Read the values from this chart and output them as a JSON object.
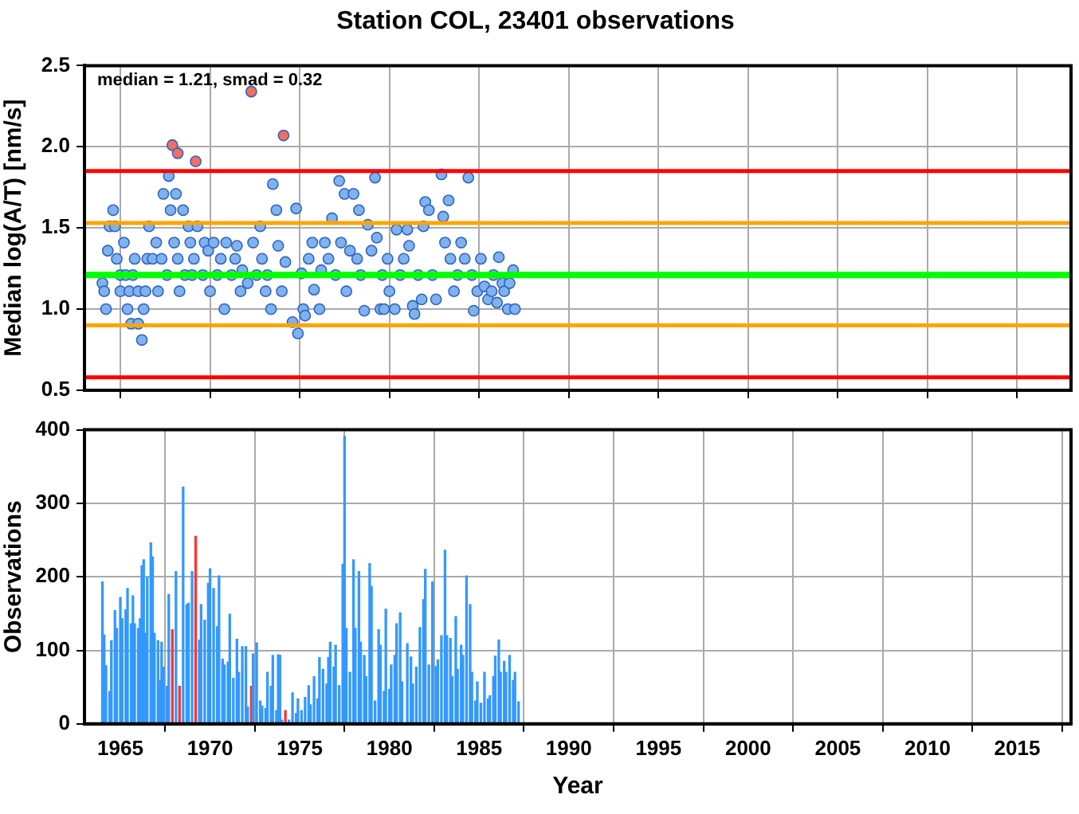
{
  "chart_data": [
    {
      "type": "scatter",
      "title": "Station COL, 23401 observations",
      "ylabel": "Median log(A/T) [nm/s]",
      "xlim": [
        1963,
        2018
      ],
      "xticks": [
        1965,
        1970,
        1975,
        1980,
        1985,
        1990,
        1995,
        2000,
        2005,
        2010,
        2015
      ],
      "ylim": [
        0.5,
        2.5
      ],
      "yticks": [
        0.5,
        {
          "value": 1,
          "label": "1.0"
        },
        1.5,
        {
          "value": 2,
          "label": "2.0"
        },
        2.5
      ],
      "tick_labels": "y",
      "grid": true,
      "marker": "circle",
      "annotations": [
        "median = 1.21, smad = 0.32"
      ],
      "ref_lines": [
        {
          "axis": "y",
          "value": 1.85,
          "color": "#ff0000"
        },
        {
          "axis": "y",
          "value": 1.53,
          "color": "#ffa500"
        },
        {
          "axis": "y",
          "value": 1.21,
          "color": "#00ff00"
        },
        {
          "axis": "y",
          "value": 0.9,
          "color": "#ffa500"
        },
        {
          "axis": "y",
          "value": 0.58,
          "color": "#ff0000"
        }
      ],
      "series": [
        {
          "color": "#7fb2f0",
          "x": [
            1964.0,
            1964.1,
            1964.2,
            1964.3,
            1964.4,
            1964.6,
            1964.7,
            1964.8,
            1965.0,
            1965.0,
            1965.2,
            1965.3,
            1965.4,
            1965.5,
            1965.6,
            1965.7,
            1965.8,
            1966.0,
            1966.0,
            1966.2,
            1966.3,
            1966.4,
            1966.5,
            1966.6,
            1966.8,
            1967.0,
            1967.1,
            1967.3,
            1967.4,
            1967.6,
            1967.7,
            1967.8,
            1968.0,
            1968.1,
            1968.2,
            1968.3,
            1968.5,
            1968.6,
            1968.8,
            1968.9,
            1969.0,
            1969.1,
            1969.3,
            1969.6,
            1969.7,
            1969.9,
            1970.0,
            1970.2,
            1970.4,
            1970.6,
            1970.8,
            1970.9,
            1971.2,
            1971.4,
            1971.5,
            1971.7,
            1971.8,
            1972.1,
            1972.4,
            1972.6,
            1972.8,
            1972.9,
            1973.1,
            1973.2,
            1973.4,
            1973.5,
            1973.7,
            1973.8,
            1974.0,
            1974.2,
            1974.6,
            1974.8,
            1974.9,
            1975.1,
            1975.2,
            1975.3,
            1975.5,
            1975.7,
            1975.8,
            1976.1,
            1976.2,
            1976.4,
            1976.6,
            1976.8,
            1977.0,
            1977.2,
            1977.3,
            1977.5,
            1977.6,
            1977.8,
            1978.0,
            1978.2,
            1978.3,
            1978.4,
            1978.6,
            1978.8,
            1979.0,
            1979.2,
            1979.3,
            1979.5,
            1979.6,
            1979.7,
            1979.9,
            1980.0,
            1980.3,
            1980.4,
            1980.6,
            1980.8,
            1981.0,
            1981.1,
            1981.3,
            1981.4,
            1981.6,
            1981.8,
            1981.9,
            1982.0,
            1982.2,
            1982.4,
            1982.6,
            1982.9,
            1983.0,
            1983.1,
            1983.3,
            1983.4,
            1983.6,
            1983.8,
            1984.0,
            1984.2,
            1984.4,
            1984.6,
            1984.7,
            1984.9,
            1985.1,
            1985.3,
            1985.5,
            1985.7,
            1985.8,
            1986.0,
            1986.1,
            1986.3,
            1986.4,
            1986.6,
            1986.7,
            1986.9,
            1987.0
          ],
          "values": [
            1.16,
            1.11,
            1.0,
            1.36,
            1.51,
            1.61,
            1.51,
            1.31,
            1.21,
            1.11,
            1.41,
            1.21,
            1.0,
            1.11,
            0.91,
            1.21,
            1.31,
            1.11,
            0.91,
            0.81,
            1.0,
            1.11,
            1.31,
            1.51,
            1.31,
            1.41,
            1.11,
            1.31,
            1.71,
            1.21,
            1.82,
            1.61,
            1.41,
            1.71,
            1.31,
            1.11,
            1.61,
            1.21,
            1.51,
            1.41,
            1.21,
            1.31,
            1.51,
            1.21,
            1.41,
            1.36,
            1.11,
            1.41,
            1.21,
            1.31,
            1.0,
            1.41,
            1.21,
            1.31,
            1.39,
            1.11,
            1.24,
            1.16,
            1.41,
            1.21,
            1.51,
            1.31,
            1.11,
            1.21,
            1.0,
            1.77,
            1.61,
            1.39,
            1.11,
            1.29,
            0.92,
            1.62,
            0.85,
            1.22,
            1.0,
            0.96,
            1.31,
            1.41,
            1.12,
            1.0,
            1.24,
            1.41,
            1.31,
            1.56,
            1.21,
            1.79,
            1.41,
            1.71,
            1.11,
            1.36,
            1.71,
            1.31,
            1.61,
            1.21,
            0.99,
            1.52,
            1.36,
            1.81,
            1.44,
            1.0,
            1.21,
            1.0,
            1.31,
            1.11,
            1.0,
            1.49,
            1.21,
            1.31,
            1.49,
            1.39,
            1.02,
            0.97,
            1.21,
            1.06,
            1.51,
            1.66,
            1.61,
            1.21,
            1.06,
            1.83,
            1.57,
            1.41,
            1.67,
            1.31,
            1.11,
            1.21,
            1.41,
            1.31,
            1.81,
            1.21,
            0.99,
            1.11,
            1.31,
            1.14,
            1.06,
            1.11,
            1.21,
            1.04,
            1.32,
            1.16,
            1.11,
            1.0,
            1.16,
            1.24,
            1.0
          ]
        },
        {
          "color": "#f07060",
          "x": [
            1967.9,
            1968.2,
            1969.2,
            1972.3,
            1974.1
          ],
          "values": [
            2.01,
            1.96,
            1.91,
            2.34,
            2.07
          ]
        }
      ]
    },
    {
      "type": "bar",
      "xlabel": "Year",
      "ylabel": "Observations",
      "xlim": [
        1963,
        2018
      ],
      "xticks": [
        1965,
        1970,
        1975,
        1980,
        1985,
        1990,
        1995,
        2000,
        2005,
        2010,
        2015
      ],
      "ylim": [
        0,
        400
      ],
      "yticks": [
        0,
        100,
        200,
        300,
        400
      ],
      "grid": true,
      "x": [
        1964.0,
        1964.1,
        1964.2,
        1964.4,
        1964.5,
        1964.7,
        1964.8,
        1965.0,
        1965.1,
        1965.3,
        1965.4,
        1965.6,
        1965.7,
        1965.8,
        1966.0,
        1966.1,
        1966.2,
        1966.3,
        1966.4,
        1966.5,
        1966.7,
        1966.8,
        1966.9,
        1967.1,
        1967.2,
        1967.3,
        1967.4,
        1967.6,
        1967.7,
        1967.9,
        1968.1,
        1968.3,
        1968.5,
        1968.7,
        1968.8,
        1969.0,
        1969.2,
        1969.4,
        1969.5,
        1969.7,
        1969.9,
        1970.0,
        1970.2,
        1970.4,
        1970.5,
        1970.7,
        1970.8,
        1971.0,
        1971.1,
        1971.3,
        1971.5,
        1971.6,
        1971.8,
        1972.0,
        1972.1,
        1972.3,
        1972.4,
        1972.6,
        1972.8,
        1972.9,
        1973.1,
        1973.2,
        1973.4,
        1973.5,
        1973.7,
        1973.8,
        1973.9,
        1974.0,
        1974.2,
        1974.4,
        1974.6,
        1974.8,
        1974.9,
        1975.1,
        1975.3,
        1975.5,
        1975.6,
        1975.8,
        1976.0,
        1976.1,
        1976.3,
        1976.5,
        1976.6,
        1976.7,
        1976.9,
        1977.0,
        1977.2,
        1977.4,
        1977.5,
        1977.6,
        1977.8,
        1978.0,
        1978.1,
        1978.3,
        1978.4,
        1978.6,
        1978.7,
        1978.9,
        1979.0,
        1979.2,
        1979.4,
        1979.5,
        1979.7,
        1979.8,
        1980.0,
        1980.1,
        1980.3,
        1980.4,
        1980.6,
        1980.7,
        1981.0,
        1981.2,
        1981.3,
        1981.5,
        1981.7,
        1981.9,
        1982.0,
        1982.2,
        1982.4,
        1982.6,
        1982.7,
        1982.9,
        1983.1,
        1983.2,
        1983.4,
        1983.5,
        1983.7,
        1983.8,
        1984.0,
        1984.1,
        1984.3,
        1984.5,
        1984.6,
        1984.8,
        1984.9,
        1985.1,
        1985.3,
        1985.5,
        1985.6,
        1985.8,
        1985.9,
        1986.1,
        1986.2,
        1986.4,
        1986.5,
        1986.7,
        1986.9,
        1987.0,
        1987.2
      ],
      "values": [
        193,
        121,
        79,
        44,
        113,
        154,
        130,
        172,
        143,
        155,
        184,
        136,
        174,
        136,
        130,
        143,
        215,
        223,
        123,
        199,
        246,
        227,
        123,
        113,
        59,
        111,
        77,
        51,
        176,
        128,
        207,
        51,
        322,
        162,
        164,
        207,
        255,
        114,
        162,
        141,
        191,
        211,
        184,
        132,
        201,
        88,
        80,
        84,
        149,
        62,
        115,
        70,
        105,
        105,
        23,
        51,
        95,
        110,
        31,
        24,
        21,
        70,
        51,
        93,
        18,
        94,
        93,
        5,
        18,
        5,
        42,
        14,
        34,
        18,
        36,
        52,
        26,
        64,
        34,
        90,
        74,
        54,
        90,
        111,
        77,
        107,
        52,
        217,
        391,
        130,
        70,
        223,
        130,
        207,
        111,
        93,
        64,
        218,
        187,
        31,
        128,
        107,
        44,
        156,
        47,
        80,
        93,
        136,
        151,
        57,
        109,
        91,
        54,
        77,
        131,
        169,
        210,
        80,
        193,
        78,
        87,
        120,
        236,
        120,
        116,
        64,
        146,
        74,
        107,
        93,
        201,
        162,
        70,
        31,
        57,
        28,
        70,
        34,
        38,
        64,
        92,
        114,
        70,
        85,
        70,
        93,
        59,
        70,
        30
      ],
      "colors": [
        "#3399ff",
        "#3399ff",
        "#3399ff",
        "#3399ff",
        "#3399ff",
        "#3399ff",
        "#3399ff",
        "#3399ff",
        "#3399ff",
        "#3399ff",
        "#3399ff",
        "#3399ff",
        "#3399ff",
        "#3399ff",
        "#3399ff",
        "#3399ff",
        "#3399ff",
        "#3399ff",
        "#3399ff",
        "#3399ff",
        "#3399ff",
        "#3399ff",
        "#3399ff",
        "#3399ff",
        "#3399ff",
        "#3399ff",
        "#3399ff",
        "#3399ff",
        "#3399ff",
        "#ff3333",
        "#3399ff",
        "#ff3333",
        "#3399ff",
        "#3399ff",
        "#3399ff",
        "#3399ff",
        "#ff3333",
        "#3399ff",
        "#3399ff",
        "#3399ff",
        "#3399ff",
        "#3399ff",
        "#3399ff",
        "#3399ff",
        "#3399ff",
        "#3399ff",
        "#3399ff",
        "#3399ff",
        "#3399ff",
        "#3399ff",
        "#3399ff",
        "#3399ff",
        "#3399ff",
        "#3399ff",
        "#3399ff",
        "#ff3333",
        "#3399ff",
        "#3399ff",
        "#3399ff",
        "#3399ff",
        "#3399ff",
        "#3399ff",
        "#3399ff",
        "#3399ff",
        "#3399ff",
        "#3399ff",
        "#3399ff",
        "#3399ff",
        "#ff3333",
        "#3399ff",
        "#3399ff",
        "#3399ff",
        "#3399ff",
        "#3399ff",
        "#3399ff",
        "#3399ff",
        "#3399ff",
        "#3399ff",
        "#3399ff",
        "#3399ff",
        "#3399ff",
        "#3399ff",
        "#3399ff",
        "#3399ff",
        "#3399ff",
        "#3399ff",
        "#3399ff",
        "#3399ff",
        "#3399ff",
        "#3399ff",
        "#3399ff",
        "#3399ff",
        "#3399ff",
        "#3399ff",
        "#3399ff",
        "#3399ff",
        "#3399ff",
        "#3399ff",
        "#3399ff",
        "#3399ff",
        "#3399ff",
        "#3399ff",
        "#3399ff",
        "#3399ff",
        "#3399ff",
        "#3399ff",
        "#3399ff",
        "#3399ff",
        "#3399ff",
        "#3399ff",
        "#3399ff",
        "#3399ff",
        "#3399ff",
        "#3399ff",
        "#3399ff",
        "#3399ff",
        "#3399ff",
        "#3399ff",
        "#3399ff",
        "#3399ff",
        "#3399ff",
        "#3399ff",
        "#3399ff",
        "#3399ff",
        "#3399ff",
        "#3399ff",
        "#3399ff",
        "#3399ff",
        "#3399ff",
        "#3399ff",
        "#3399ff",
        "#3399ff",
        "#3399ff",
        "#3399ff",
        "#3399ff",
        "#3399ff",
        "#3399ff",
        "#3399ff",
        "#3399ff",
        "#3399ff",
        "#3399ff",
        "#3399ff",
        "#3399ff",
        "#3399ff",
        "#3399ff",
        "#3399ff",
        "#3399ff",
        "#3399ff",
        "#3399ff"
      ]
    }
  ]
}
